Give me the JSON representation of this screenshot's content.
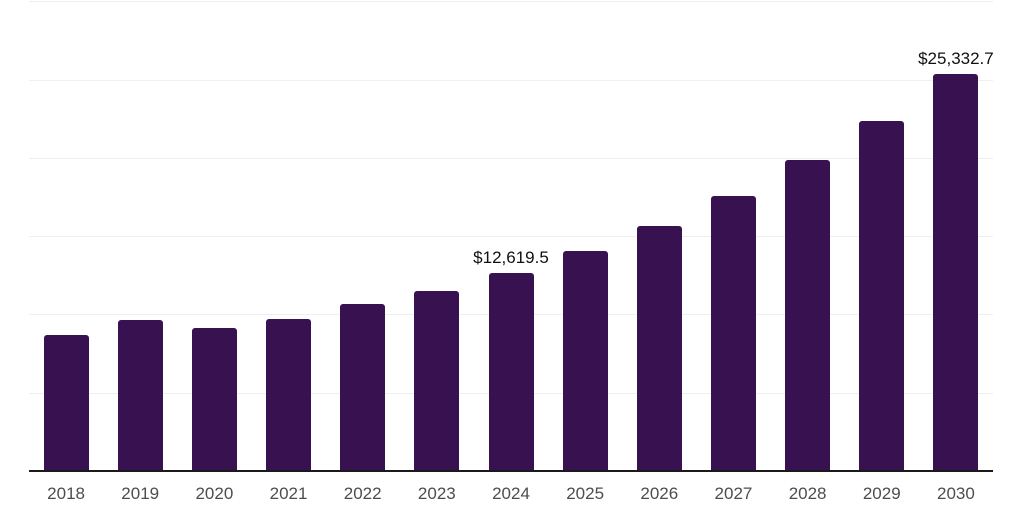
{
  "chart_data": {
    "type": "bar",
    "title": "",
    "xlabel": "",
    "ylabel": "",
    "categories": [
      "2018",
      "2019",
      "2020",
      "2021",
      "2022",
      "2023",
      "2024",
      "2025",
      "2026",
      "2027",
      "2028",
      "2029",
      "2030"
    ],
    "values": [
      8660,
      9620,
      9110,
      9700,
      10700,
      11470,
      12619.5,
      14030,
      15660,
      17570,
      19840,
      22370,
      25332.7
    ],
    "data_labels": [
      {
        "category": "2024",
        "text": "$12,619.5"
      },
      {
        "category": "2030",
        "text": "$25,332.7"
      }
    ],
    "ylim": [
      0,
      30000
    ],
    "grid_step": 5000,
    "grid_on": true,
    "y_tick_labels_shown": false,
    "legend": "none",
    "colors": {
      "bar": "#371150",
      "gridline": "#efefef",
      "axis": "#1a1a1a",
      "tick_label": "#4d4d4d",
      "data_label": "#111111",
      "background": "#ffffff"
    }
  }
}
